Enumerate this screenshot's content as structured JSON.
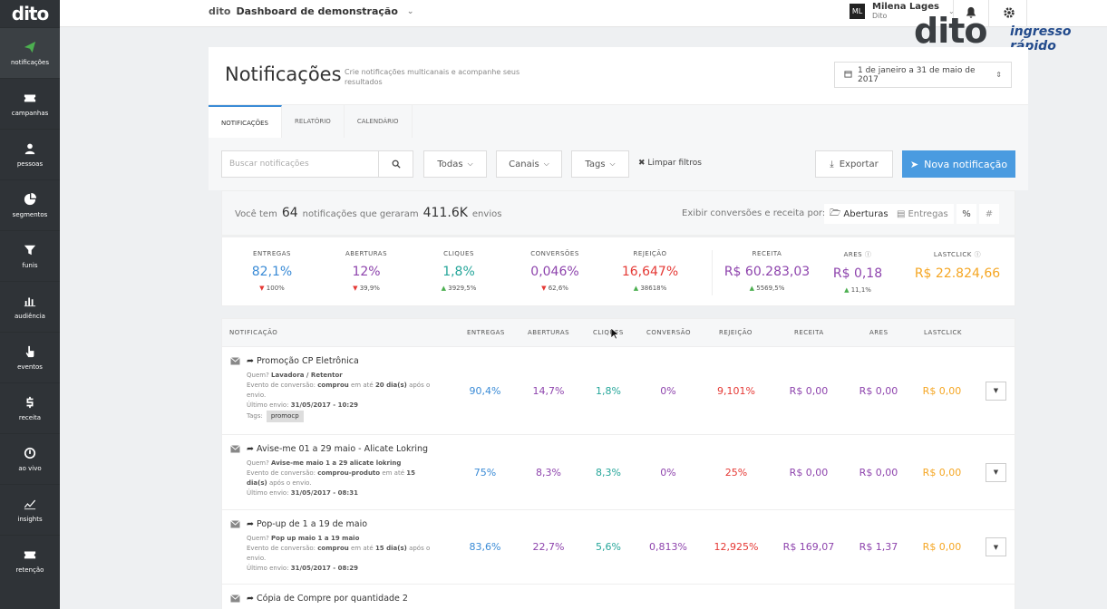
{
  "sidebar": {
    "logo": "dito",
    "items": [
      {
        "label": "notificações",
        "icon": "paper-plane-icon",
        "active": true
      },
      {
        "label": "campanhas",
        "icon": "ticket-icon"
      },
      {
        "label": "pessoas",
        "icon": "person-icon"
      },
      {
        "label": "segmentos",
        "icon": "pie-chart-icon"
      },
      {
        "label": "funis",
        "icon": "funnel-icon"
      },
      {
        "label": "audiência",
        "icon": "bar-chart-icon"
      },
      {
        "label": "eventos",
        "icon": "hand-pointer-icon"
      },
      {
        "label": "receita",
        "icon": "dollar-icon"
      },
      {
        "label": "ao vivo",
        "icon": "clock-icon"
      },
      {
        "label": "insights",
        "icon": "line-chart-icon"
      },
      {
        "label": "retenção",
        "icon": "ticket-icon"
      }
    ]
  },
  "topbar": {
    "mini_logo": "dito",
    "dashboard": "Dashboard de demonstração",
    "user_initials": "ML",
    "user_name": "Milena Lages",
    "user_org": "Dito"
  },
  "brand": {
    "dito": "dito",
    "partner": "ingresso rápido"
  },
  "page": {
    "title": "Notificações",
    "subtitle": "Crie notificações multicanais e acompanhe seus resultados",
    "date_range": "1 de janeiro a 31 de maio de 2017"
  },
  "tabs": [
    "Notificações",
    "Relatório",
    "Calendário"
  ],
  "tools": {
    "search_placeholder": "Buscar notificações",
    "filter_all": "Todas",
    "filter_channels": "Canais",
    "filter_tags": "Tags",
    "clear": "Limpar filtros",
    "export": "Exportar",
    "new": "Nova notificação"
  },
  "summary": {
    "prefix": "Você tem",
    "count": "64",
    "middle": "notificações que geraram",
    "sends": "411.6K",
    "suffix": "envios",
    "conv_by": "Exibir conversões e receita por:",
    "opt_opens": "Aberturas",
    "opt_deliveries": "Entregas",
    "sym_percent": "%",
    "sym_hash": "#"
  },
  "metrics": [
    {
      "label": "Entregas",
      "value": "82,1%",
      "delta": "100%",
      "dir": "down",
      "color": "#3a8bd6"
    },
    {
      "label": "Aberturas",
      "value": "12%",
      "delta": "39,9%",
      "dir": "down",
      "color": "#8e44ad"
    },
    {
      "label": "Cliques",
      "value": "1,8%",
      "delta": "3929,5%",
      "dir": "up",
      "color": "#26a69a"
    },
    {
      "label": "Conversões",
      "value": "0,046%",
      "delta": "62,6%",
      "dir": "down",
      "color": "#8e44ad"
    },
    {
      "label": "Rejeição",
      "value": "16,647%",
      "delta": "38618%",
      "dir": "up",
      "color": "#e53935"
    },
    {
      "label": "Receita",
      "value": "R$ 60.283,03",
      "delta": "5569,5%",
      "dir": "up",
      "color": "#8e44ad"
    },
    {
      "label": "ARES",
      "value": "R$ 0,18",
      "delta": "11,1%",
      "dir": "up",
      "color": "#8e44ad"
    },
    {
      "label": "Lastclick",
      "value": "R$ 22.824,66",
      "delta": "",
      "dir": "",
      "color": "#f5a623"
    }
  ],
  "table": {
    "headers": [
      "Notificação",
      "Entregas",
      "Aberturas",
      "Cliques",
      "Conversão",
      "Rejeição",
      "Receita",
      "ARES",
      "Lastclick"
    ],
    "rows": [
      {
        "title": "Promoção CP Eletrônica",
        "who_label": "Quem?",
        "who": "Lavadora / Retentor",
        "event_label": "Evento de conversão:",
        "event": "comprou",
        "event_mid": "em até",
        "event_days": "20 dia(s)",
        "event_tail": "após o envio.",
        "last_label": "Último envio:",
        "last": "31/05/2017 - 10:29",
        "tags_label": "Tags:",
        "tag": "promocp",
        "values": [
          "90,4%",
          "14,7%",
          "1,8%",
          "0%",
          "9,101%",
          "R$ 0,00",
          "R$ 0,00",
          "R$ 0,00"
        ]
      },
      {
        "title": "Avise-me 01 a 29 maio - Alicate Lokring",
        "who_label": "Quem?",
        "who": "Avise-me maio 1 a 29 alicate lokring",
        "event_label": "Evento de conversão:",
        "event": "comprou-produto",
        "event_mid": "em até",
        "event_days": "15 dia(s)",
        "event_tail": "após o envio.",
        "last_label": "Último envio:",
        "last": "31/05/2017 - 08:31",
        "values": [
          "75%",
          "8,3%",
          "8,3%",
          "0%",
          "25%",
          "R$ 0,00",
          "R$ 0,00",
          "R$ 0,00"
        ]
      },
      {
        "title": "Pop-up de 1 a 19 de maio",
        "who_label": "Quem?",
        "who": "Pop up maio 1 a 19 maio",
        "event_label": "Evento de conversão:",
        "event": "comprou",
        "event_mid": "em até",
        "event_days": "15 dia(s)",
        "event_tail": "após o envio.",
        "last_label": "Último envio:",
        "last": "31/05/2017 - 08:29",
        "values": [
          "83,6%",
          "22,7%",
          "5,6%",
          "0,813%",
          "12,925%",
          "R$ 169,07",
          "R$ 1,37",
          "R$ 0,00"
        ]
      },
      {
        "title": "Cópia de Compre por quantidade 2"
      }
    ]
  }
}
